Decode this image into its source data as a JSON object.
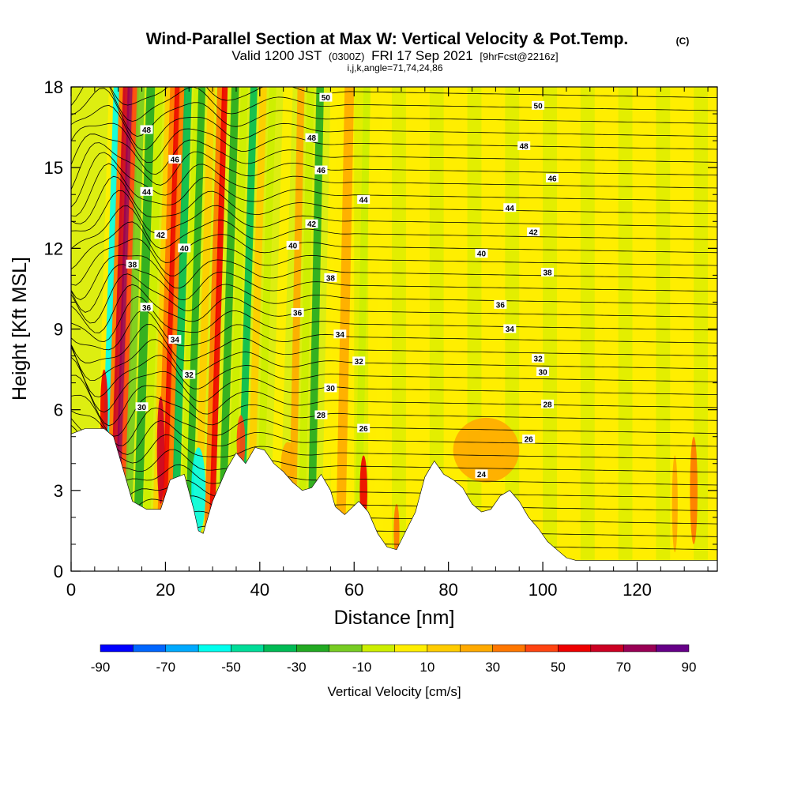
{
  "titles": {
    "main": "Wind-Parallel Section at Max W: Vertical Velocity & Pot.Temp.",
    "copyright": "(C)",
    "valid_prefix": "Valid 1200 JST",
    "valid_utc": "(0300Z)",
    "valid_date": "FRI 17 Sep 2021",
    "forecast": "[9hrFcst@2216z]",
    "indices": "i,j,k,angle=71,74,24,86"
  },
  "chart_data": {
    "type": "heatmap",
    "xlabel": "Distance [nm]",
    "ylabel": "Height [Kft MSL]",
    "xlim": [
      0,
      137
    ],
    "ylim": [
      0,
      18
    ],
    "x_ticks": [
      0,
      20,
      40,
      60,
      80,
      100,
      120
    ],
    "y_ticks": [
      0,
      3,
      6,
      9,
      12,
      15,
      18
    ],
    "colorbar": {
      "label": "Vertical Velocity [cm/s]",
      "ticks": [
        -90,
        -70,
        -50,
        -30,
        -10,
        10,
        30,
        50,
        70,
        90
      ],
      "bins": [
        -90,
        -80,
        -70,
        -60,
        -50,
        -40,
        -30,
        -20,
        -10,
        0,
        10,
        20,
        30,
        40,
        50,
        60,
        70,
        80,
        90
      ],
      "colors": [
        "#0000ff",
        "#0066ff",
        "#00aaff",
        "#00ffee",
        "#00dd99",
        "#00bb55",
        "#22aa22",
        "#77cc22",
        "#ccee00",
        "#ffee00",
        "#ffcc00",
        "#ffaa00",
        "#ff7700",
        "#ff4411",
        "#ee0000",
        "#cc0022",
        "#990055",
        "#660088"
      ]
    },
    "terrain_kft": [
      [
        0,
        5.1
      ],
      [
        3,
        5.3
      ],
      [
        7,
        5.3
      ],
      [
        9,
        5.0
      ],
      [
        11,
        3.8
      ],
      [
        13,
        2.6
      ],
      [
        16,
        2.3
      ],
      [
        19,
        2.3
      ],
      [
        21,
        3.4
      ],
      [
        24,
        3.6
      ],
      [
        26,
        2.3
      ],
      [
        27,
        1.5
      ],
      [
        28,
        1.4
      ],
      [
        30,
        2.6
      ],
      [
        33,
        3.8
      ],
      [
        35,
        4.4
      ],
      [
        37,
        4.0
      ],
      [
        39,
        4.6
      ],
      [
        41,
        4.5
      ],
      [
        43,
        4.0
      ],
      [
        45,
        3.7
      ],
      [
        47,
        3.3
      ],
      [
        49,
        3.0
      ],
      [
        51,
        3.1
      ],
      [
        53,
        3.6
      ],
      [
        55,
        3.0
      ],
      [
        56,
        2.4
      ],
      [
        58,
        2.1
      ],
      [
        61,
        2.6
      ],
      [
        63,
        2.2
      ],
      [
        65,
        1.4
      ],
      [
        67,
        0.9
      ],
      [
        69,
        0.8
      ],
      [
        71,
        1.5
      ],
      [
        73,
        2.2
      ],
      [
        75,
        3.5
      ],
      [
        77,
        4.1
      ],
      [
        79,
        3.6
      ],
      [
        81,
        3.4
      ],
      [
        83,
        3.1
      ],
      [
        85,
        2.5
      ],
      [
        87,
        2.2
      ],
      [
        89,
        2.3
      ],
      [
        91,
        2.8
      ],
      [
        93,
        3.0
      ],
      [
        95,
        2.6
      ],
      [
        97,
        2.0
      ],
      [
        99,
        1.6
      ],
      [
        101,
        1.1
      ],
      [
        103,
        0.8
      ],
      [
        105,
        0.5
      ],
      [
        107,
        0.4
      ],
      [
        112,
        0.4
      ],
      [
        120,
        0.4
      ],
      [
        137,
        0.4
      ]
    ],
    "theta_labels": [
      {
        "text": "50",
        "x": 54,
        "y": 17.6
      },
      {
        "text": "50",
        "x": 99,
        "y": 17.3
      },
      {
        "text": "48",
        "x": 16,
        "y": 16.4
      },
      {
        "text": "48",
        "x": 51,
        "y": 16.1
      },
      {
        "text": "48",
        "x": 96,
        "y": 15.8
      },
      {
        "text": "46",
        "x": 22,
        "y": 15.3
      },
      {
        "text": "46",
        "x": 53,
        "y": 14.9
      },
      {
        "text": "46",
        "x": 102,
        "y": 14.6
      },
      {
        "text": "44",
        "x": 16,
        "y": 14.1
      },
      {
        "text": "44",
        "x": 62,
        "y": 13.8
      },
      {
        "text": "44",
        "x": 93,
        "y": 13.5
      },
      {
        "text": "42",
        "x": 19,
        "y": 12.5
      },
      {
        "text": "42",
        "x": 51,
        "y": 12.9
      },
      {
        "text": "42",
        "x": 98,
        "y": 12.6
      },
      {
        "text": "40",
        "x": 24,
        "y": 12.0
      },
      {
        "text": "40",
        "x": 47,
        "y": 12.1
      },
      {
        "text": "40",
        "x": 87,
        "y": 11.8
      },
      {
        "text": "38",
        "x": 13,
        "y": 11.4
      },
      {
        "text": "38",
        "x": 55,
        "y": 10.9
      },
      {
        "text": "38",
        "x": 101,
        "y": 11.1
      },
      {
        "text": "36",
        "x": 16,
        "y": 9.8
      },
      {
        "text": "36",
        "x": 48,
        "y": 9.6
      },
      {
        "text": "36",
        "x": 91,
        "y": 9.9
      },
      {
        "text": "34",
        "x": 22,
        "y": 8.6
      },
      {
        "text": "34",
        "x": 57,
        "y": 8.8
      },
      {
        "text": "34",
        "x": 93,
        "y": 9.0
      },
      {
        "text": "32",
        "x": 25,
        "y": 7.3
      },
      {
        "text": "32",
        "x": 61,
        "y": 7.8
      },
      {
        "text": "32",
        "x": 99,
        "y": 7.9
      },
      {
        "text": "30",
        "x": 15,
        "y": 6.1
      },
      {
        "text": "30",
        "x": 55,
        "y": 6.8
      },
      {
        "text": "30",
        "x": 100,
        "y": 7.4
      },
      {
        "text": "28",
        "x": 53,
        "y": 5.8
      },
      {
        "text": "28",
        "x": 101,
        "y": 6.2
      },
      {
        "text": "26",
        "x": 62,
        "y": 5.3
      },
      {
        "text": "26",
        "x": 97,
        "y": 4.9
      },
      {
        "text": "24",
        "x": 87,
        "y": 3.6
      }
    ]
  }
}
